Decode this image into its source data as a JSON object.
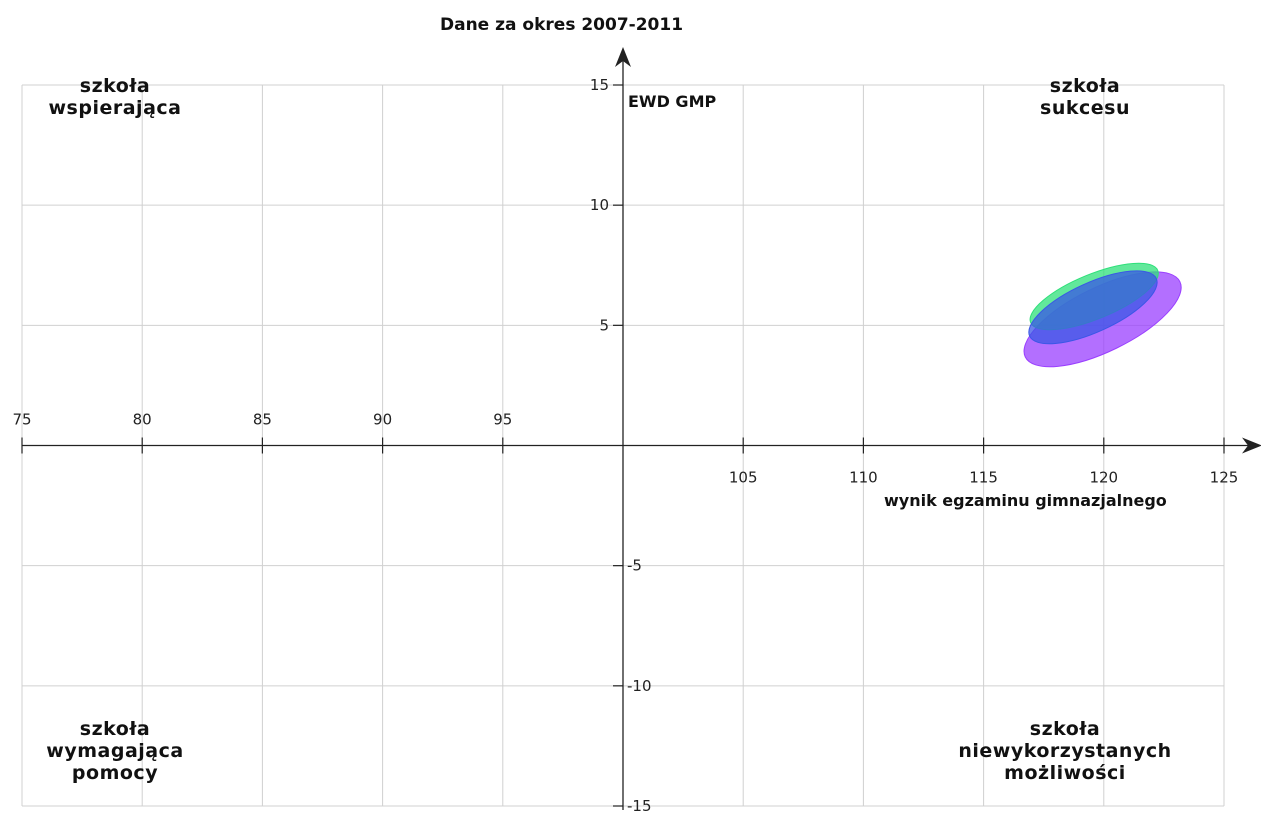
{
  "chart_data": {
    "type": "scatter",
    "title": "Dane za okres 2007-2011",
    "xlabel": "wynik egzaminu gimnazjalnego",
    "ylabel": "EWD GMP",
    "xlim": [
      75,
      125
    ],
    "ylim": [
      -15,
      15
    ],
    "x_ticks": [
      75,
      80,
      85,
      90,
      95,
      105,
      110,
      115,
      120,
      125
    ],
    "y_ticks": [
      15,
      10,
      5,
      -5,
      -10,
      -15
    ],
    "grid": true,
    "quadrants": {
      "top_left": [
        "szkoła",
        "wspierająca"
      ],
      "top_right": [
        "szkoła",
        "sukcesu"
      ],
      "bottom_left": [
        "szkoła",
        "wymagająca",
        "pomocy"
      ],
      "bottom_right": [
        "szkoła",
        "niewykorzystanych",
        "możliwości"
      ]
    },
    "series": [
      {
        "color": "#9a3fff",
        "x_range": [
          117,
          122.9
        ],
        "y_range": [
          3.1,
          7.4
        ]
      },
      {
        "color": "#2ee07a",
        "x_range": [
          117.1,
          122.1
        ],
        "y_range": [
          4.7,
          7.7
        ]
      },
      {
        "color": "#3a57e6",
        "x_range": [
          117.1,
          122.0
        ],
        "y_range": [
          4.1,
          7.4
        ]
      }
    ]
  }
}
